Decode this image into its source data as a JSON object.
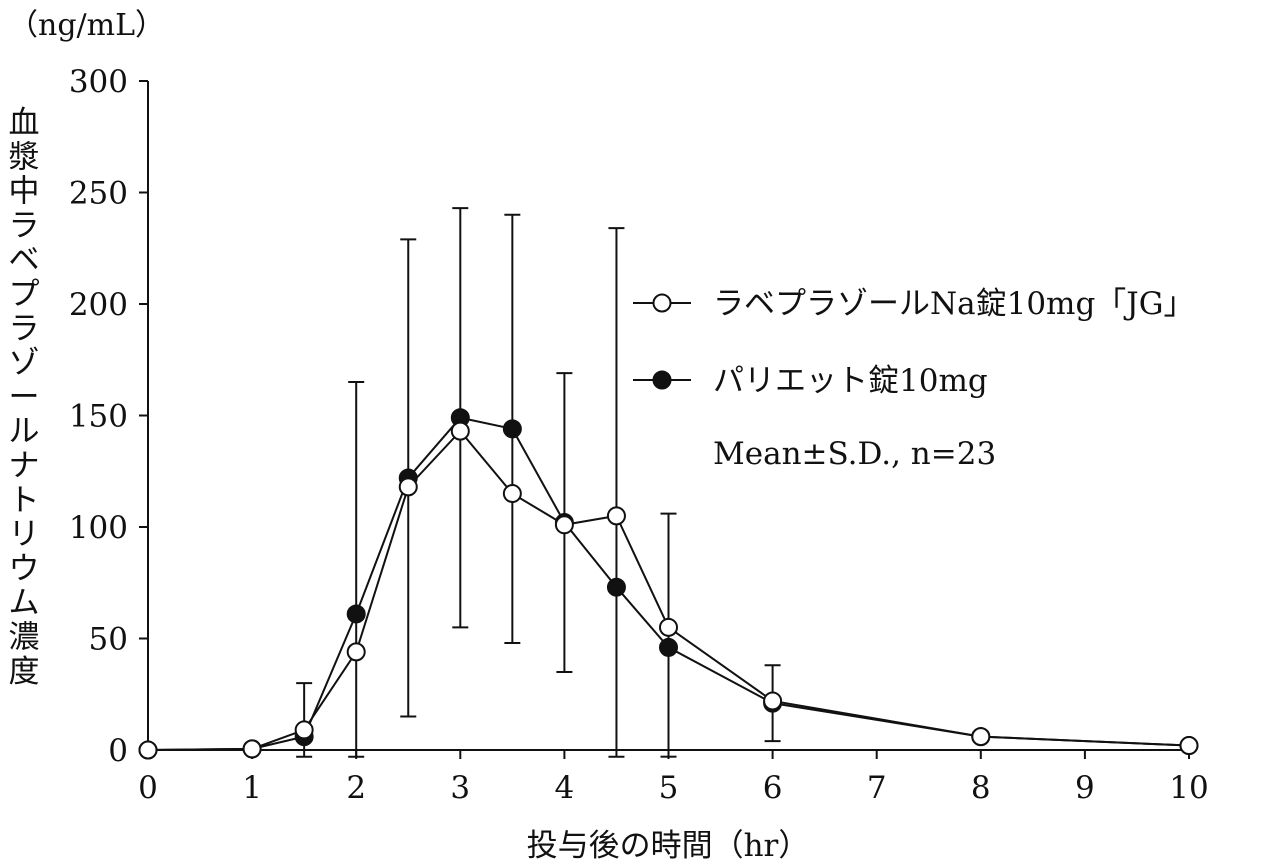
{
  "chart_data": {
    "type": "line",
    "unit_label": "（ng/mL）",
    "ylabel": "血漿中ラベプラゾールナトリウム濃度",
    "xlabel": "投与後の時間（hr）",
    "xlim": [
      0,
      10
    ],
    "ylim": [
      0,
      300
    ],
    "xticks": [
      0,
      1,
      2,
      3,
      4,
      5,
      6,
      7,
      8,
      9,
      10
    ],
    "yticks": [
      0,
      50,
      100,
      150,
      200,
      250,
      300
    ],
    "legend_position": "right",
    "note": "Mean±S.D., n=23",
    "series": [
      {
        "name": "ラベプラゾールNa錠10mg「JG」",
        "marker": "open-circle",
        "x": [
          0,
          1,
          1.5,
          2,
          2.5,
          3,
          3.5,
          4,
          4.5,
          5,
          6,
          8,
          10
        ],
        "y": [
          0,
          0.5,
          9,
          44,
          118,
          143,
          115,
          101,
          105,
          55,
          22,
          6,
          2
        ],
        "sd": [
          0,
          0,
          0,
          0,
          0,
          0,
          0,
          0,
          0,
          0,
          0,
          0,
          0
        ]
      },
      {
        "name": "パリエット錠10mg",
        "marker": "filled-circle",
        "x": [
          0,
          1,
          1.5,
          2,
          2.5,
          3,
          3.5,
          4,
          4.5,
          5,
          6,
          8,
          10
        ],
        "y": [
          0,
          0.5,
          6,
          61,
          122,
          149,
          144,
          102,
          73,
          46,
          21,
          6,
          2
        ],
        "sd": [
          0,
          0,
          24,
          104,
          107,
          94,
          96,
          67,
          161,
          60,
          17,
          2,
          0
        ]
      }
    ]
  }
}
